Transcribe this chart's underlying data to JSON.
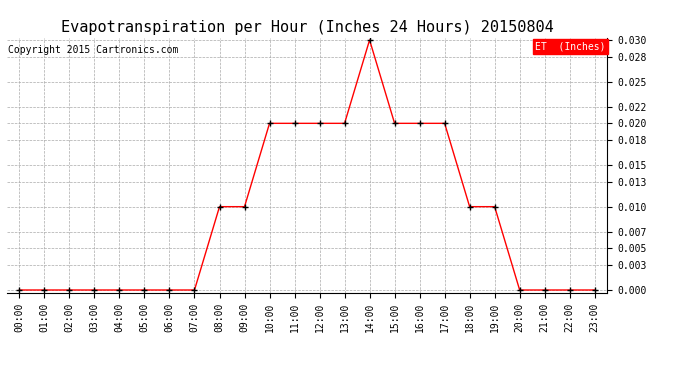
{
  "title": "Evapotranspiration per Hour (Inches 24 Hours) 20150804",
  "copyright": "Copyright 2015 Cartronics.com",
  "legend_label": "ET  (Inches)",
  "hours": [
    "00:00",
    "01:00",
    "02:00",
    "03:00",
    "04:00",
    "05:00",
    "06:00",
    "07:00",
    "08:00",
    "09:00",
    "10:00",
    "11:00",
    "12:00",
    "13:00",
    "14:00",
    "15:00",
    "16:00",
    "17:00",
    "18:00",
    "19:00",
    "20:00",
    "21:00",
    "22:00",
    "23:00"
  ],
  "values": [
    0.0,
    0.0,
    0.0,
    0.0,
    0.0,
    0.0,
    0.0,
    0.0,
    0.01,
    0.01,
    0.02,
    0.02,
    0.02,
    0.02,
    0.03,
    0.02,
    0.02,
    0.02,
    0.01,
    0.01,
    0.0,
    0.0,
    0.0,
    0.0
  ],
  "line_color": "red",
  "marker_color": "black",
  "marker_style": "+",
  "background_color": "#ffffff",
  "grid_color": "#aaaaaa",
  "ylim_min": 0.0,
  "ylim_max": 0.03,
  "yticks": [
    0.0,
    0.003,
    0.005,
    0.007,
    0.01,
    0.013,
    0.015,
    0.018,
    0.02,
    0.022,
    0.025,
    0.028,
    0.03
  ],
  "title_fontsize": 11,
  "copyright_fontsize": 7,
  "tick_fontsize": 7,
  "legend_bg_color": "red",
  "legend_text_color": "white",
  "legend_fontsize": 7
}
